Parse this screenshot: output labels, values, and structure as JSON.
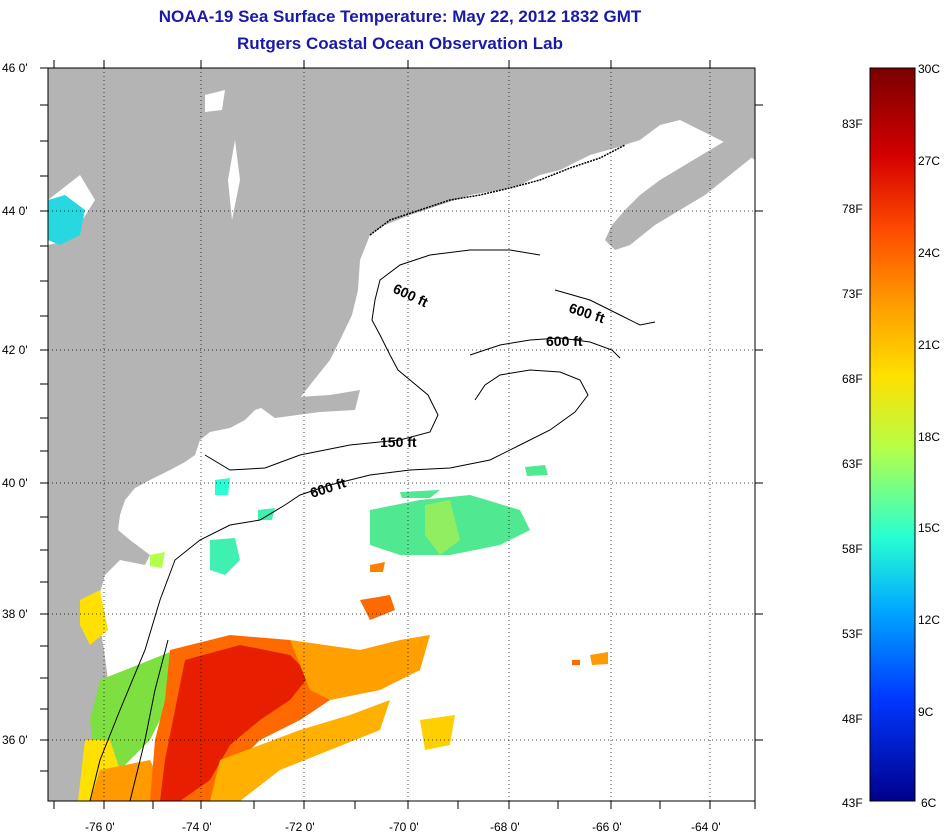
{
  "title": "NOAA-19 Sea Surface Temperature:  May 22, 2012 1832 GMT",
  "subtitle": "Rutgers Coastal Ocean Observation Lab",
  "lat_labels": [
    "46 0'",
    "44 0'",
    "42 0'",
    "40 0'",
    "38 0'",
    "36 0'"
  ],
  "lon_labels": [
    "-76 0'",
    "-74 0'",
    "-72 0'",
    "-70 0'",
    "-68 0'",
    "-66 0'",
    "-64 0'"
  ],
  "contour_labels": [
    "600 ft",
    "600 ft",
    "600 ft",
    "150 ft",
    "600 ft"
  ],
  "colorbar": {
    "fahrenheit": [
      "83F",
      "78F",
      "73F",
      "68F",
      "63F",
      "58F",
      "53F",
      "48F",
      "43F"
    ],
    "celsius": [
      "30C",
      "27C",
      "24C",
      "21C",
      "18C",
      "15C",
      "12C",
      "9C",
      "6C"
    ],
    "range_celsius": [
      6,
      30
    ]
  },
  "colors": {
    "title": "#1a1aa8",
    "land": "#b4b4b4",
    "ocean": "#ffffff",
    "scale": [
      "#7a0000",
      "#d40000",
      "#ff4a00",
      "#ff9a00",
      "#ffe000",
      "#b4ff4a",
      "#28ffd2",
      "#00a8ff",
      "#0038ff",
      "#00008c"
    ]
  }
}
